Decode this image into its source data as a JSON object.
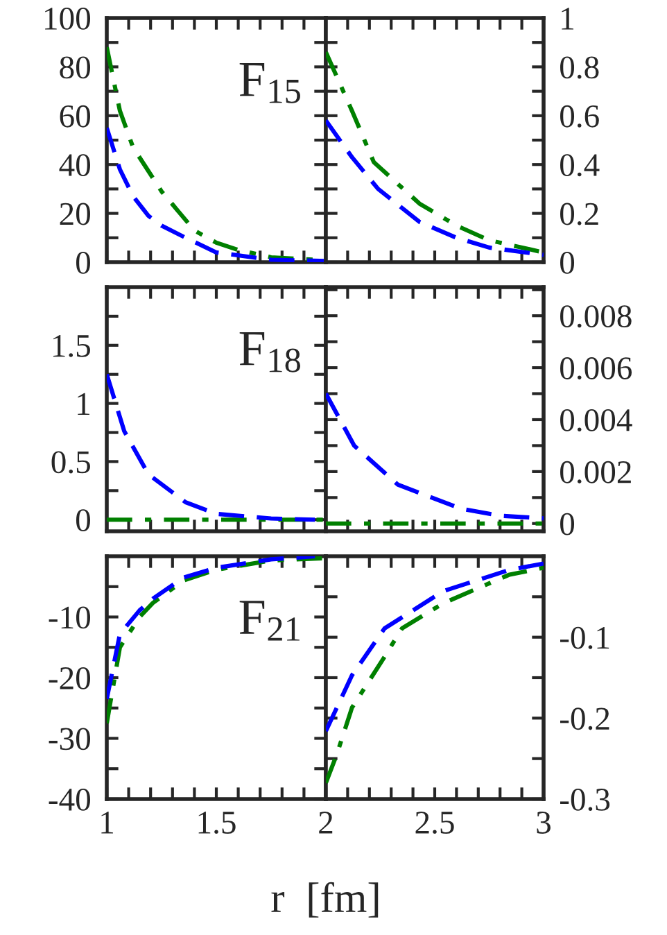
{
  "chart_data": [
    {
      "type": "line",
      "annotations": [
        "F$_{15}$"
      ],
      "xlim": [
        1,
        2
      ],
      "ylim": [
        0,
        100
      ],
      "tick_labels": "y",
      "xticks": [
        1,
        {
          "value": 1.1,
          "label": null
        },
        {
          "value": 1.2,
          "label": null
        },
        {
          "value": 1.3,
          "label": null
        },
        {
          "value": 1.4,
          "label": null
        },
        1.5,
        {
          "value": 1.6,
          "label": null
        },
        {
          "value": 1.7,
          "label": null
        },
        {
          "value": 1.8,
          "label": null
        },
        {
          "value": 1.9,
          "label": null
        },
        2
      ],
      "yticks": [
        0,
        {
          "value": 10,
          "label": null
        },
        20,
        {
          "value": 30,
          "label": null
        },
        40,
        {
          "value": 50,
          "label": null
        },
        60,
        {
          "value": 70,
          "label": null
        },
        80,
        {
          "value": 90,
          "label": null
        },
        100
      ],
      "series": [
        {
          "color": "#0000ff",
          "line_style": "dashed",
          "x": [
            1,
            1.06,
            1.12,
            1.19,
            1.25,
            1.36,
            1.5,
            1.75,
            2
          ],
          "values": [
            55,
            38,
            27,
            19,
            15,
            10,
            4,
            1,
            0.5
          ]
        },
        {
          "color": "#008000",
          "line_style": "dashdot",
          "x": [
            1,
            1.06,
            1.12,
            1.25,
            1.4,
            1.5,
            1.6,
            1.75,
            1.95
          ],
          "values": [
            88,
            62,
            47,
            29,
            13,
            8,
            5,
            2,
            1
          ]
        }
      ]
    },
    {
      "type": "line",
      "xlim": [
        2,
        3
      ],
      "ylim": [
        0,
        1
      ],
      "tick_labels": "y",
      "xticks": [
        2,
        {
          "value": 2.1,
          "label": null
        },
        {
          "value": 2.2,
          "label": null
        },
        {
          "value": 2.3,
          "label": null
        },
        {
          "value": 2.4,
          "label": null
        },
        2.5,
        {
          "value": 2.6,
          "label": null
        },
        {
          "value": 2.7,
          "label": null
        },
        {
          "value": 2.8,
          "label": null
        },
        {
          "value": 2.9,
          "label": null
        },
        3
      ],
      "yticks": [
        0,
        {
          "value": 0.1,
          "label": null
        },
        0.2,
        {
          "value": 0.3,
          "label": null
        },
        0.4,
        {
          "value": 0.5,
          "label": null
        },
        0.6,
        {
          "value": 0.7,
          "label": null
        },
        0.8,
        {
          "value": 0.9,
          "label": null
        },
        1
      ],
      "series": [
        {
          "color": "#0000ff",
          "line_style": "dashed",
          "x": [
            2,
            2.12,
            2.24,
            2.43,
            2.6,
            2.75,
            3
          ],
          "values": [
            0.58,
            0.43,
            0.3,
            0.165,
            0.1,
            0.06,
            0.03
          ]
        },
        {
          "color": "#008000",
          "line_style": "dashdot",
          "x": [
            2,
            2.12,
            2.22,
            2.43,
            2.6,
            2.75,
            3
          ],
          "values": [
            0.86,
            0.62,
            0.41,
            0.24,
            0.15,
            0.09,
            0.04
          ]
        }
      ]
    },
    {
      "type": "line",
      "annotations": [
        "F$_{18}$"
      ],
      "xlim": [
        1,
        2
      ],
      "ylim": [
        -0.1,
        2
      ],
      "tick_labels": "y",
      "xticks": [
        1,
        {
          "value": 1.1,
          "label": null
        },
        {
          "value": 1.2,
          "label": null
        },
        {
          "value": 1.3,
          "label": null
        },
        {
          "value": 1.4,
          "label": null
        },
        1.5,
        {
          "value": 1.6,
          "label": null
        },
        {
          "value": 1.7,
          "label": null
        },
        {
          "value": 1.8,
          "label": null
        },
        {
          "value": 1.9,
          "label": null
        },
        2
      ],
      "yticks": [
        0,
        {
          "value": 0.25,
          "label": null
        },
        0.5,
        {
          "value": 0.75,
          "label": null
        },
        1,
        {
          "value": 1.25,
          "label": null
        },
        1.5,
        {
          "value": 1.75,
          "label": null
        }
      ],
      "series": [
        {
          "color": "#0000ff",
          "line_style": "dashed",
          "x": [
            1,
            1.08,
            1.19,
            1.36,
            1.5,
            1.75,
            1.95
          ],
          "values": [
            1.25,
            0.76,
            0.39,
            0.15,
            0.05,
            0.01,
            0
          ]
        },
        {
          "color": "#008000",
          "line_style": "dashdot",
          "x": [
            1,
            1.5,
            2
          ],
          "values": [
            0,
            0,
            0
          ]
        }
      ]
    },
    {
      "type": "line",
      "xlim": [
        2,
        3
      ],
      "ylim": [
        -0.0003,
        0.0091
      ],
      "tick_labels": "y",
      "xticks": [
        2,
        {
          "value": 2.1,
          "label": null
        },
        {
          "value": 2.2,
          "label": null
        },
        {
          "value": 2.3,
          "label": null
        },
        {
          "value": 2.4,
          "label": null
        },
        2.5,
        {
          "value": 2.6,
          "label": null
        },
        {
          "value": 2.7,
          "label": null
        },
        {
          "value": 2.8,
          "label": null
        },
        {
          "value": 2.9,
          "label": null
        },
        3
      ],
      "yticks": [
        0,
        {
          "value": 0.001,
          "label": null
        },
        0.002,
        {
          "value": 0.003,
          "label": null
        },
        0.004,
        {
          "value": 0.005,
          "label": null
        },
        0.006,
        {
          "value": 0.007,
          "label": null
        },
        0.008,
        {
          "value": 0.009,
          "label": null
        }
      ],
      "series": [
        {
          "color": "#0000ff",
          "line_style": "dashed",
          "x": [
            2,
            2.13,
            2.33,
            2.62,
            2.8,
            3
          ],
          "values": [
            0.005,
            0.003,
            0.0015,
            0.00057,
            0.0003,
            0.0002
          ]
        },
        {
          "color": "#008000",
          "line_style": "dashdot",
          "x": [
            2,
            2.5,
            3
          ],
          "values": [
            0,
            0,
            0
          ]
        }
      ]
    },
    {
      "type": "line",
      "annotations": [
        "F$_{21}$"
      ],
      "xlim": [
        1,
        2
      ],
      "ylim": [
        -40,
        0
      ],
      "xticks": [
        1,
        {
          "value": 1.1,
          "label": null
        },
        {
          "value": 1.2,
          "label": null
        },
        {
          "value": 1.3,
          "label": null
        },
        {
          "value": 1.4,
          "label": null
        },
        1.5,
        {
          "value": 1.6,
          "label": null
        },
        {
          "value": 1.7,
          "label": null
        },
        {
          "value": 1.8,
          "label": null
        },
        {
          "value": 1.9,
          "label": null
        },
        {
          "value": 2,
          "label": null
        }
      ],
      "yticks": [
        -40,
        {
          "value": -35,
          "label": null
        },
        -30,
        {
          "value": -25,
          "label": null
        },
        -20,
        {
          "value": -15,
          "label": null
        },
        -10,
        {
          "value": -5,
          "label": null
        }
      ],
      "series": [
        {
          "color": "#0000ff",
          "line_style": "dashed",
          "x": [
            1,
            1.06,
            1.15,
            1.21,
            1.35,
            1.5,
            1.75,
            1.95
          ],
          "values": [
            -23.5,
            -12.8,
            -8.9,
            -7,
            -3.5,
            -1.9,
            -0.5,
            0
          ]
        },
        {
          "color": "#008000",
          "line_style": "dashdot",
          "x": [
            1,
            1.06,
            1.15,
            1.21,
            1.35,
            1.5,
            1.75,
            2
          ],
          "values": [
            -27.5,
            -15,
            -10,
            -7.7,
            -4,
            -2.2,
            -0.7,
            -0.3
          ]
        }
      ]
    },
    {
      "type": "line",
      "xlabel": "r  [fm]",
      "xlim": [
        2,
        3
      ],
      "ylim": [
        -0.3,
        0
      ],
      "xticks": [
        2,
        {
          "value": 2.1,
          "label": null
        },
        {
          "value": 2.2,
          "label": null
        },
        {
          "value": 2.3,
          "label": null
        },
        {
          "value": 2.4,
          "label": null
        },
        2.5,
        {
          "value": 2.6,
          "label": null
        },
        {
          "value": 2.7,
          "label": null
        },
        {
          "value": 2.8,
          "label": null
        },
        {
          "value": 2.9,
          "label": null
        },
        3
      ],
      "yticks": [
        -0.3,
        {
          "value": -0.25,
          "label": null
        },
        -0.2,
        {
          "value": -0.15,
          "label": null
        },
        -0.1,
        {
          "value": -0.05,
          "label": null
        }
      ],
      "series": [
        {
          "color": "#0000ff",
          "line_style": "dashed",
          "x": [
            2,
            2.12,
            2.27,
            2.54,
            2.84,
            3
          ],
          "values": [
            -0.216,
            -0.147,
            -0.089,
            -0.043,
            -0.017,
            -0.009
          ]
        },
        {
          "color": "#008000",
          "line_style": "dashdot",
          "x": [
            2,
            2.05,
            2.12,
            2.27,
            2.35,
            2.54,
            2.84,
            3
          ],
          "values": [
            -0.28,
            -0.245,
            -0.187,
            -0.124,
            -0.089,
            -0.058,
            -0.023,
            -0.014
          ]
        }
      ]
    }
  ]
}
